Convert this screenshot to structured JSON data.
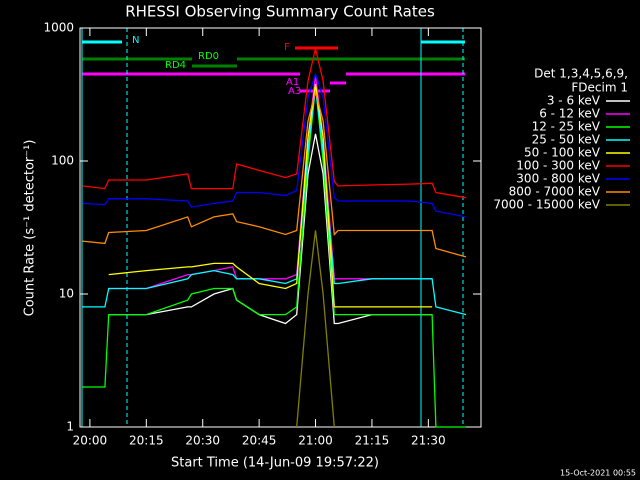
{
  "chart_data": {
    "type": "line",
    "title": "RHESSI Observing Summary Count Rates",
    "x_label": "Start Time (14-Jun-09 19:57:22)",
    "y_label": "Count Rate (s⁻¹ detector⁻¹)",
    "legend_header": [
      "Det 1,3,4,5,6,9,",
      "FDecim 1"
    ],
    "footer": "15-Oct-2021 00:55",
    "annotations": [
      "N",
      "RD0",
      "RD4",
      "F",
      "A1",
      "A3"
    ],
    "log_y": true,
    "xlim": [
      "19:57:22",
      "21:44"
    ],
    "xticks": [
      "20:00",
      "20:15",
      "20:30",
      "20:45",
      "21:00",
      "21:15",
      "21:30"
    ],
    "ylim": [
      1,
      1000
    ],
    "yticks": [
      1,
      10,
      100,
      1000
    ],
    "x": [
      "19:58",
      "20:04",
      "20:05",
      "20:15",
      "20:26",
      "20:27",
      "20:33",
      "20:38",
      "20:39",
      "20:45",
      "20:52",
      "20:55",
      "20:58",
      "21:00",
      "21:02",
      "21:05",
      "21:06",
      "21:15",
      "21:25",
      "21:31",
      "21:32",
      "21:40"
    ],
    "series": [
      {
        "name": "3 - 6 keV",
        "color": "#ffffff",
        "values": [
          null,
          null,
          7,
          7,
          8,
          8,
          10,
          11,
          9,
          7,
          6,
          7,
          80,
          160,
          80,
          6,
          6,
          7,
          7,
          7,
          null,
          null
        ]
      },
      {
        "name": "6 - 12 keV",
        "color": "#ff00ff",
        "values": [
          null,
          null,
          11,
          11,
          14,
          14,
          15,
          16,
          13,
          13,
          13,
          14,
          150,
          440,
          150,
          13,
          13,
          13,
          13,
          13,
          null,
          null
        ]
      },
      {
        "name": "12 - 25 keV",
        "color": "#00ff00",
        "values": [
          2,
          2,
          7,
          7,
          9,
          10,
          11,
          11,
          9,
          7,
          7,
          8,
          100,
          370,
          100,
          7,
          7,
          7,
          7,
          7,
          1,
          1
        ]
      },
      {
        "name": "25 - 50 keV",
        "color": "#00ffff",
        "values": [
          8,
          8,
          11,
          11,
          13,
          14,
          15,
          14,
          13,
          13,
          12,
          13,
          120,
          360,
          120,
          12,
          12,
          13,
          13,
          13,
          8,
          7
        ]
      },
      {
        "name": "50 - 100 keV",
        "color": "#ffff00",
        "values": [
          null,
          null,
          14,
          15,
          16,
          16,
          17,
          17,
          16,
          12,
          11,
          12,
          150,
          380,
          150,
          8,
          8,
          8,
          8,
          8,
          null,
          null
        ]
      },
      {
        "name": "100 - 300 keV",
        "color": "#ff0000",
        "values": [
          65,
          62,
          72,
          72,
          80,
          62,
          62,
          62,
          95,
          85,
          75,
          80,
          400,
          700,
          400,
          70,
          65,
          66,
          67,
          68,
          58,
          53
        ]
      },
      {
        "name": "300 - 800 keV",
        "color": "#0000ff",
        "values": [
          48,
          47,
          52,
          52,
          50,
          45,
          48,
          50,
          58,
          58,
          55,
          60,
          300,
          450,
          300,
          53,
          50,
          50,
          50,
          48,
          42,
          38
        ]
      },
      {
        "name": "800 - 7000 keV",
        "color": "#ff8c00",
        "values": [
          25,
          24,
          29,
          30,
          38,
          32,
          38,
          40,
          35,
          32,
          28,
          30,
          200,
          330,
          200,
          28,
          30,
          30,
          30,
          30,
          22,
          19
        ]
      },
      {
        "name": "7000 - 15000 keV",
        "color": "#808000",
        "values": [
          null,
          null,
          null,
          null,
          null,
          null,
          null,
          null,
          null,
          null,
          null,
          1,
          10,
          30,
          10,
          1,
          null,
          null,
          null,
          null,
          null,
          null
        ]
      }
    ]
  }
}
